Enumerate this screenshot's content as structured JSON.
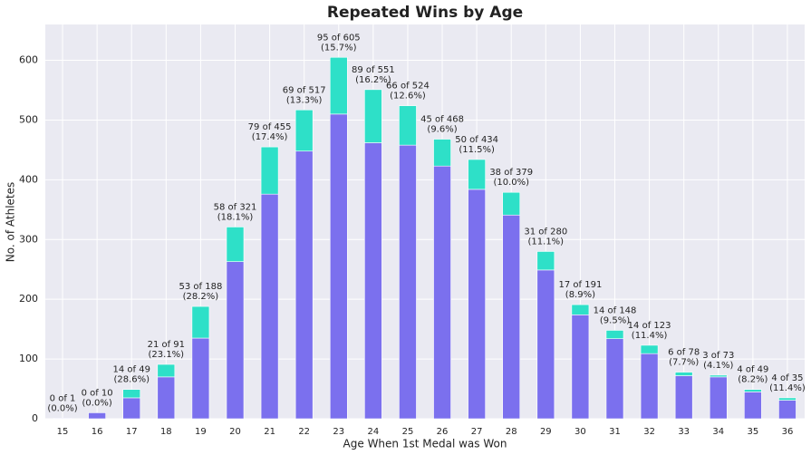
{
  "chart_data": {
    "type": "stacked_bar",
    "title": "Repeated Wins by Age",
    "x_label": "Age When 1st Medal was Won",
    "y_label": "No. of Athletes",
    "categories": [
      "15",
      "16",
      "17",
      "18",
      "19",
      "20",
      "21",
      "22",
      "23",
      "24",
      "25",
      "26",
      "27",
      "28",
      "29",
      "30",
      "31",
      "32",
      "33",
      "34",
      "35",
      "36"
    ],
    "series": [
      {
        "color": "#7b70ee",
        "values": [
          1,
          10,
          35,
          70,
          135,
          263,
          376,
          448,
          510,
          462,
          458,
          423,
          384,
          341,
          249,
          174,
          134,
          109,
          72,
          70,
          45,
          31
        ]
      },
      {
        "color": "#2ee0c8",
        "values": [
          0,
          0,
          14,
          21,
          53,
          58,
          79,
          69,
          95,
          89,
          66,
          45,
          50,
          38,
          31,
          17,
          14,
          14,
          6,
          3,
          4,
          4
        ],
        "value_labels": [
          [
            "0 of 1",
            "(0.0%)"
          ],
          [
            "0 of 10",
            "(0.0%)"
          ],
          [
            "14 of 49",
            "(28.6%)"
          ],
          [
            "21 of 91",
            "(23.1%)"
          ],
          [
            "53 of 188",
            "(28.2%)"
          ],
          [
            "58 of 321",
            "(18.1%)"
          ],
          [
            "79 of 455",
            "(17.4%)"
          ],
          [
            "69 of 517",
            "(13.3%)"
          ],
          [
            "95 of 605",
            "(15.7%)"
          ],
          [
            "89 of 551",
            "(16.2%)"
          ],
          [
            "66 of 524",
            "(12.6%)"
          ],
          [
            "45 of 468",
            "(9.6%)"
          ],
          [
            "50 of 434",
            "(11.5%)"
          ],
          [
            "38 of 379",
            "(10.0%)"
          ],
          [
            "31 of 280",
            "(11.1%)"
          ],
          [
            "17 of 191",
            "(8.9%)"
          ],
          [
            "14 of 148",
            "(9.5%)"
          ],
          [
            "14 of 123",
            "(11.4%)"
          ],
          [
            "6 of 78",
            "(7.7%)"
          ],
          [
            "3 of 73",
            "(4.1%)"
          ],
          [
            "4 of 49",
            "(8.2%)"
          ],
          [
            "4 of 35",
            "(11.4%)"
          ]
        ]
      }
    ],
    "ylim": [
      0,
      660
    ],
    "yticks": [
      0,
      100,
      200,
      300,
      400,
      500,
      600
    ],
    "grid": true
  }
}
